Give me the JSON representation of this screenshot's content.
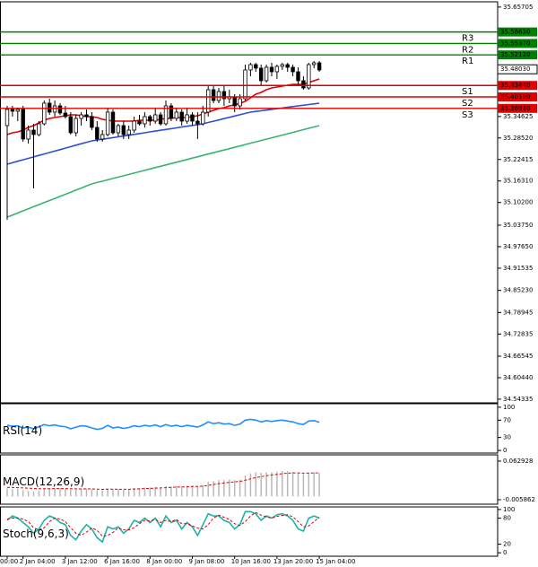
{
  "chart_data": {
    "type": "candlestick",
    "categories": [
      "00:00",
      null,
      null,
      "2 Jan 04:00",
      null,
      null,
      null,
      null,
      null,
      null,
      null,
      "3 Jan 12:00",
      null,
      null,
      null,
      null,
      null,
      null,
      null,
      "6 Jan 16:00",
      null,
      null,
      null,
      null,
      null,
      null,
      null,
      "8 Jan 00:00",
      null,
      null,
      null,
      null,
      null,
      null,
      null,
      "9 Jan 08:00",
      null,
      null,
      null,
      null,
      null,
      null,
      null,
      "10 Jan 16:00",
      null,
      null,
      null,
      null,
      null,
      null,
      null,
      "13 Jan 20:00",
      null,
      null,
      null,
      null,
      null,
      null,
      null,
      "15 Jan 04:00"
    ],
    "open": [
      35.3204,
      35.3662,
      35.3612,
      35.3662,
      35.2822,
      35.3076,
      35.2949,
      35.3255,
      35.3841,
      35.3586,
      35.3764,
      35.3561,
      35.3459,
      35.3,
      35.3408,
      35.351,
      35.3459,
      35.3153,
      35.2822,
      35.2949,
      35.3586,
      35.3,
      35.3204,
      35.2949,
      35.3076,
      35.3331,
      35.3255,
      35.3459,
      35.3331,
      35.351,
      35.3255,
      35.3764,
      35.3408,
      35.3586,
      35.3331,
      35.351,
      35.3331,
      35.3255,
      35.3586,
      35.4223,
      35.3917,
      35.4172,
      35.3968,
      35.4019,
      35.3764,
      35.3968,
      35.4784,
      35.4936,
      35.4835,
      35.4478,
      35.486,
      35.4733,
      35.4886,
      35.4936,
      35.486,
      35.4733,
      35.4478,
      35.4274,
      35.4936,
      35.4987
    ],
    "high": [
      35.3764,
      35.3764,
      35.3713,
      35.3764,
      35.3204,
      35.3255,
      35.3331,
      35.3917,
      35.3968,
      35.3917,
      35.3841,
      35.3764,
      35.3586,
      35.351,
      35.3586,
      35.3662,
      35.3586,
      35.3331,
      35.3076,
      35.3713,
      35.3662,
      35.3255,
      35.3331,
      35.3204,
      35.3459,
      35.351,
      35.3586,
      35.351,
      35.3713,
      35.3586,
      35.3917,
      35.3841,
      35.3713,
      35.3662,
      35.3713,
      35.3586,
      35.3586,
      35.3764,
      35.435,
      35.435,
      35.4274,
      35.4325,
      35.4223,
      35.4096,
      35.4096,
      35.4936,
      35.4987,
      35.4987,
      35.4936,
      35.4936,
      35.4987,
      35.4936,
      35.4987,
      35.4987,
      35.4936,
      35.486,
      35.4605,
      35.4987,
      35.5038,
      35.5038
    ],
    "low": [
      35.0528,
      35.3459,
      35.3331,
      35.2745,
      35.2694,
      35.142,
      35.2898,
      35.3204,
      35.351,
      35.3459,
      35.351,
      35.3408,
      35.2949,
      35.2898,
      35.3204,
      35.3331,
      35.3076,
      35.2745,
      35.2745,
      35.2898,
      35.2949,
      35.2898,
      35.2822,
      35.2822,
      35.3,
      35.3204,
      35.3153,
      35.3204,
      35.3255,
      35.3204,
      35.3204,
      35.3331,
      35.3331,
      35.3204,
      35.3255,
      35.3204,
      35.2822,
      35.3204,
      35.3459,
      35.3841,
      35.3841,
      35.3764,
      35.3841,
      35.3586,
      35.3662,
      35.3917,
      35.4605,
      35.4733,
      35.435,
      35.4427,
      35.4605,
      35.4529,
      35.4784,
      35.4733,
      35.4605,
      35.435,
      35.4223,
      35.4223,
      35.4835,
      35.4733
    ],
    "close": [
      35.3662,
      35.3612,
      35.3662,
      35.2822,
      35.3076,
      35.2949,
      35.3255,
      35.3841,
      35.3586,
      35.3764,
      35.3561,
      35.3459,
      35.3,
      35.3408,
      35.351,
      35.3459,
      35.3153,
      35.2822,
      35.2949,
      35.3586,
      35.3,
      35.3204,
      35.2949,
      35.3076,
      35.3331,
      35.3255,
      35.3459,
      35.3331,
      35.351,
      35.3255,
      35.3764,
      35.3408,
      35.3586,
      35.3331,
      35.351,
      35.3331,
      35.3255,
      35.3586,
      35.4223,
      35.3917,
      35.4172,
      35.3968,
      35.4019,
      35.3764,
      35.3968,
      35.4784,
      35.4936,
      35.4835,
      35.4478,
      35.486,
      35.4733,
      35.4886,
      35.4936,
      35.486,
      35.4733,
      35.4478,
      35.4274,
      35.4936,
      35.4987,
      35.4784
    ],
    "up_color": "#ffffff",
    "down_color": "#000000",
    "series": [
      {
        "color": "#3cb371",
        "values": [
          35.0605,
          35.0664,
          35.0723,
          35.0782,
          35.0841,
          35.09,
          35.0958,
          35.1017,
          35.1076,
          35.1135,
          35.1194,
          35.1253,
          35.1312,
          35.1371,
          35.143,
          35.1489,
          35.1548,
          35.1587,
          35.1625,
          35.1664,
          35.1702,
          35.1741,
          35.1779,
          35.1818,
          35.1856,
          35.1895,
          35.1933,
          35.1972,
          35.201,
          35.2049,
          35.2087,
          35.2126,
          35.2164,
          35.2203,
          35.2241,
          35.228,
          35.2318,
          35.2357,
          35.2395,
          35.2434,
          35.2472,
          35.2511,
          35.2549,
          35.2588,
          35.2626,
          35.2665,
          35.2703,
          35.2742,
          35.278,
          35.2819,
          35.2857,
          35.2896,
          35.2934,
          35.2973,
          35.3011,
          35.305,
          35.3088,
          35.3127,
          35.3165,
          35.3204
        ]
      },
      {
        "color": "#3050d0",
        "values": [
          35.2108,
          35.2149,
          35.2191,
          35.2232,
          35.2274,
          35.2315,
          35.2357,
          35.2398,
          35.244,
          35.2481,
          35.2522,
          35.2564,
          35.2605,
          35.2647,
          35.2688,
          35.273,
          35.2771,
          35.2794,
          35.2817,
          35.284,
          35.2863,
          35.2886,
          35.2909,
          35.2932,
          35.2955,
          35.2978,
          35.3001,
          35.3025,
          35.3048,
          35.3071,
          35.3094,
          35.3117,
          35.314,
          35.3163,
          35.3186,
          35.3209,
          35.3232,
          35.3255,
          35.3292,
          35.3329,
          35.3365,
          35.3402,
          35.3439,
          35.3476,
          35.3512,
          35.3549,
          35.3586,
          35.3606,
          35.3625,
          35.3645,
          35.3664,
          35.3684,
          35.3704,
          35.3723,
          35.3743,
          35.3763,
          35.3782,
          35.3802,
          35.3821,
          35.3841
        ]
      },
      {
        "color": "#e00000",
        "values": [
          35.2949,
          35.3,
          35.3025,
          35.3076,
          35.3153,
          35.3204,
          35.328,
          35.3357,
          35.3408,
          35.3433,
          35.3459,
          35.3484,
          35.351,
          35.351,
          35.3484,
          35.3459,
          35.3459,
          35.3433,
          35.3382,
          35.3357,
          35.3331,
          35.3331,
          35.3331,
          35.3331,
          35.3331,
          35.3357,
          35.3357,
          35.3357,
          35.3357,
          35.3382,
          35.3408,
          35.3408,
          35.3433,
          35.3433,
          35.3433,
          35.3459,
          35.3484,
          35.3535,
          35.3586,
          35.3637,
          35.3688,
          35.3714,
          35.3765,
          35.379,
          35.3841,
          35.3892,
          35.3994,
          35.4096,
          35.4147,
          35.4223,
          35.4274,
          35.43,
          35.4325,
          35.4351,
          35.4376,
          35.4376,
          35.4376,
          35.4427,
          35.4478,
          35.4529
        ]
      }
    ],
    "levels": [
      {
        "label": "R3",
        "value": 35.5863,
        "value_label": "35.58630",
        "color": "#008000"
      },
      {
        "label": "R2",
        "value": 35.5537,
        "value_label": "35.55370",
        "color": "#008000"
      },
      {
        "label": "R1",
        "value": 35.5212,
        "value_label": "35.52120",
        "color": "#008000"
      },
      {
        "label": "S1",
        "value": 35.4344,
        "value_label": "35.43440",
        "color": "#e00000"
      },
      {
        "label": "S2",
        "value": 35.4019,
        "value_label": "35.40190",
        "color": "#e00000"
      },
      {
        "label": "S3",
        "value": 35.3693,
        "value_label": "35.36930",
        "color": "#e00000"
      }
    ],
    "last_price": {
      "value": 35.4803,
      "label": "35.48030"
    },
    "ylim": [
      34.533,
      35.672
    ],
    "yticks": [
      35.65705,
      35.34625,
      {
        "value": 35.2852,
        "label": "35.28520"
      },
      35.22415,
      {
        "value": 35.1631,
        "label": "35.16310"
      },
      {
        "value": 35.102,
        "label": "35.10200"
      },
      {
        "value": 35.0375,
        "label": "35.03750"
      },
      {
        "value": 34.9765,
        "label": "34.97650"
      },
      34.91535,
      {
        "value": 34.8523,
        "label": "34.85230"
      },
      34.78945,
      34.72835,
      34.66545,
      {
        "value": 34.6044,
        "label": "34.60440"
      },
      34.54335
    ],
    "indicators": [
      {
        "type": "rsi",
        "title": "RSI(14)",
        "ylim": [
          -6,
          108
        ],
        "yticks": [
          100,
          70,
          30,
          0
        ],
        "series": [
          {
            "color": "#1e90ff",
            "style": "solid",
            "values": [
              58,
              56,
              57,
              52,
              54,
              50,
              55,
              60,
              57,
              59,
              56,
              55,
              50,
              54,
              57,
              56,
              52,
              49,
              51,
              58,
              52,
              54,
              51,
              53,
              57,
              55,
              58,
              56,
              59,
              55,
              60,
              56,
              58,
              55,
              58,
              56,
              54,
              59,
              66,
              62,
              64,
              61,
              62,
              58,
              61,
              70,
              72,
              70,
              66,
              69,
              67,
              69,
              70,
              68,
              66,
              62,
              60,
              68,
              69,
              65
            ]
          }
        ]
      },
      {
        "type": "macd",
        "title": "MACD(12,26,9)",
        "ylim": [
          -0.0139,
          0.0741
        ],
        "yticks": [
          0.062928,
          -0.005862
        ],
        "series": [
          {
            "color": "#b8b8b8",
            "style": "bar",
            "values": [
              0.014,
              0.013,
              0.013,
              0.011,
              0.01,
              0.009,
              0.01,
              0.013,
              0.014,
              0.015,
              0.015,
              0.014,
              0.012,
              0.012,
              0.013,
              0.014,
              0.013,
              0.011,
              0.011,
              0.014,
              0.013,
              0.013,
              0.012,
              0.013,
              0.015,
              0.015,
              0.016,
              0.016,
              0.017,
              0.016,
              0.018,
              0.018,
              0.019,
              0.018,
              0.019,
              0.019,
              0.018,
              0.02,
              0.026,
              0.027,
              0.029,
              0.029,
              0.03,
              0.029,
              0.03,
              0.037,
              0.041,
              0.043,
              0.042,
              0.043,
              0.043,
              0.044,
              0.045,
              0.045,
              0.044,
              0.042,
              0.04,
              0.042,
              0.043,
              0.042
            ]
          },
          {
            "color": "#e00000",
            "style": "dashed",
            "values": [
              0.016,
              0.0158,
              0.0155,
              0.0151,
              0.0146,
              0.0141,
              0.0137,
              0.0136,
              0.0137,
              0.0139,
              0.014,
              0.014,
              0.0137,
              0.0134,
              0.0133,
              0.0134,
              0.0133,
              0.0129,
              0.0125,
              0.0128,
              0.0128,
              0.0128,
              0.0127,
              0.0127,
              0.0131,
              0.0134,
              0.0139,
              0.0143,
              0.0148,
              0.015,
              0.0156,
              0.016,
              0.0166,
              0.0168,
              0.0172,
              0.0176,
              0.0177,
              0.0182,
              0.0197,
              0.0212,
              0.0228,
              0.024,
              0.0252,
              0.026,
              0.0268,
              0.0288,
              0.0313,
              0.0336,
              0.0353,
              0.0368,
              0.0381,
              0.0393,
              0.0405,
              0.0414,
              0.0419,
              0.0419,
              0.0415,
              0.0416,
              0.0419,
              0.0419
            ]
          }
        ]
      },
      {
        "type": "stoch",
        "title": "Stoch(9,6,3)",
        "ylim": [
          -8,
          106
        ],
        "yticks": [
          100,
          80,
          20,
          0
        ],
        "series": [
          {
            "color": "#20b2aa",
            "style": "solid",
            "values": [
              75,
              85,
              80,
              70,
              60,
              45,
              55,
              75,
              85,
              80,
              70,
              65,
              40,
              30,
              50,
              65,
              55,
              35,
              25,
              60,
              55,
              60,
              45,
              55,
              75,
              70,
              80,
              70,
              80,
              60,
              85,
              70,
              75,
              55,
              70,
              60,
              40,
              65,
              90,
              85,
              85,
              75,
              70,
              55,
              65,
              95,
              95,
              90,
              75,
              85,
              80,
              88,
              90,
              85,
              75,
              55,
              50,
              80,
              85,
              80
            ]
          },
          {
            "color": "#e00000",
            "style": "dashed",
            "values": [
              78,
              80,
              80,
              78,
              72,
              58,
              53,
              58,
              72,
              80,
              78,
              72,
              58,
              45,
              40,
              48,
              57,
              52,
              38,
              40,
              47,
              58,
              53,
              53,
              58,
              67,
              75,
              73,
              77,
              70,
              75,
              72,
              77,
              67,
              67,
              62,
              57,
              55,
              65,
              80,
              87,
              82,
              77,
              67,
              63,
              72,
              85,
              93,
              87,
              83,
              80,
              84,
              86,
              88,
              83,
              72,
              60,
              62,
              72,
              82
            ]
          }
        ]
      }
    ]
  }
}
